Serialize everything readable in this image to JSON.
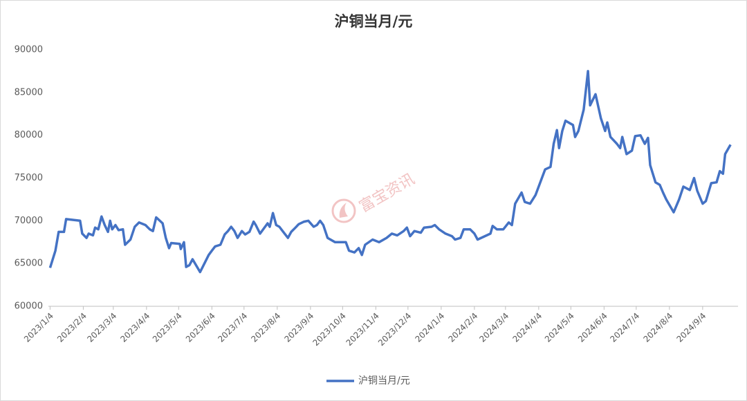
{
  "chart_data": {
    "type": "line",
    "title": "沪铜当月/元",
    "watermark": "富宝资讯",
    "x": [
      "2023/1/4",
      "2023/1/9",
      "2023/1/12",
      "2023/1/17",
      "2023/1/19",
      "2023/2/1",
      "2023/2/3",
      "2023/2/7",
      "2023/2/9",
      "2023/2/13",
      "2023/2/15",
      "2023/2/18",
      "2023/2/21",
      "2023/2/24",
      "2023/2/27",
      "2023/3/1",
      "2023/3/3",
      "2023/3/6",
      "2023/3/9",
      "2023/3/13",
      "2023/3/15",
      "2023/3/20",
      "2023/3/24",
      "2023/3/28",
      "2023/4/3",
      "2023/4/7",
      "2023/4/10",
      "2023/4/13",
      "2023/4/19",
      "2023/4/22",
      "2023/4/25",
      "2023/4/27",
      "2023/5/5",
      "2023/5/6",
      "2023/5/9",
      "2023/5/11",
      "2023/5/14",
      "2023/5/17",
      "2023/5/24",
      "2023/5/28",
      "2023/6/1",
      "2023/6/4",
      "2023/6/7",
      "2023/6/12",
      "2023/6/16",
      "2023/6/19",
      "2023/6/22",
      "2023/6/25",
      "2023/6/28",
      "2023/7/2",
      "2023/7/5",
      "2023/7/9",
      "2023/7/13",
      "2023/7/15",
      "2023/7/19",
      "2023/7/26",
      "2023/7/28",
      "2023/7/31",
      "2023/8/3",
      "2023/8/6",
      "2023/8/9",
      "2023/8/14",
      "2023/8/17",
      "2023/8/21",
      "2023/8/24",
      "2023/8/29",
      "2023/9/2",
      "2023/9/7",
      "2023/9/10",
      "2023/9/13",
      "2023/9/16",
      "2023/9/20",
      "2023/9/27",
      "2023/10/7",
      "2023/10/10",
      "2023/10/15",
      "2023/10/19",
      "2023/10/22",
      "2023/10/25",
      "2023/11/1",
      "2023/11/7",
      "2023/11/14",
      "2023/11/19",
      "2023/11/24",
      "2023/11/30",
      "2023/12/3",
      "2023/12/6",
      "2023/12/10",
      "2023/12/16",
      "2023/12/19",
      "2023/12/26",
      "2023/12/29",
      "2024/1/2",
      "2024/1/8",
      "2024/1/14",
      "2024/1/17",
      "2024/1/22",
      "2024/1/25",
      "2024/1/31",
      "2024/2/4",
      "2024/2/7",
      "2024/2/19",
      "2024/2/21",
      "2024/2/25",
      "2024/3/2",
      "2024/3/7",
      "2024/3/10",
      "2024/3/13",
      "2024/3/19",
      "2024/3/22",
      "2024/3/27",
      "2024/4/1",
      "2024/4/10",
      "2024/4/15",
      "2024/4/18",
      "2024/4/21",
      "2024/4/23",
      "2024/4/26",
      "2024/4/29",
      "2024/5/6",
      "2024/5/8",
      "2024/5/11",
      "2024/5/16",
      "2024/5/20",
      "2024/5/22",
      "2024/5/27",
      "2024/6/1",
      "2024/6/5",
      "2024/6/7",
      "2024/6/10",
      "2024/6/16",
      "2024/6/19",
      "2024/6/21",
      "2024/6/25",
      "2024/6/30",
      "2024/7/3",
      "2024/7/8",
      "2024/7/12",
      "2024/7/15",
      "2024/7/17",
      "2024/7/22",
      "2024/7/26",
      "2024/7/29",
      "2024/8/1",
      "2024/8/8",
      "2024/8/13",
      "2024/8/17",
      "2024/8/23",
      "2024/8/27",
      "2024/8/30",
      "2024/9/4",
      "2024/9/7",
      "2024/9/12",
      "2024/9/17",
      "2024/9/20",
      "2024/9/23",
      "2024/9/25",
      "2024/9/30"
    ],
    "series": [
      {
        "name": "沪铜当月/元",
        "color": "#4472c4",
        "values": [
          64500,
          66500,
          68700,
          68700,
          70200,
          70000,
          68500,
          68000,
          68500,
          68300,
          69200,
          69000,
          70500,
          69500,
          68700,
          70000,
          69000,
          69500,
          68900,
          69000,
          67200,
          67800,
          69300,
          69800,
          69500,
          69000,
          68800,
          70400,
          69700,
          68000,
          66800,
          67400,
          67300,
          66700,
          67500,
          64600,
          64800,
          65500,
          64000,
          65000,
          66000,
          66500,
          67000,
          67200,
          68400,
          68800,
          69300,
          68800,
          68000,
          68800,
          68400,
          68700,
          69900,
          69500,
          68500,
          69700,
          69300,
          70900,
          69500,
          69300,
          68800,
          68000,
          68700,
          69200,
          69600,
          69900,
          70000,
          69300,
          69500,
          70000,
          69500,
          68000,
          67500,
          67500,
          66500,
          66300,
          66800,
          66000,
          67200,
          67800,
          67500,
          68000,
          68500,
          68300,
          68800,
          69200,
          68200,
          68800,
          68600,
          69200,
          69300,
          69500,
          69000,
          68500,
          68200,
          67800,
          68000,
          69000,
          69000,
          68500,
          67800,
          68500,
          69400,
          69000,
          69000,
          69800,
          69500,
          72000,
          73300,
          72200,
          72000,
          73000,
          76000,
          76300,
          79000,
          80600,
          78500,
          80500,
          81700,
          81200,
          79800,
          80500,
          83000,
          87500,
          83500,
          84800,
          82000,
          80500,
          81500,
          79800,
          79000,
          78500,
          79800,
          77800,
          78200,
          79900,
          80000,
          79000,
          79700,
          76500,
          74500,
          74200,
          73300,
          72500,
          71000,
          72500,
          74000,
          73600,
          75000,
          73500,
          72000,
          72300,
          74400,
          74500,
          75800,
          75500,
          77800,
          78900
        ]
      }
    ],
    "xlim": [
      "2022/12/27",
      "2024/10/7"
    ],
    "xticks": [
      "2023/1/4",
      "2023/2/4",
      "2023/3/4",
      "2023/4/4",
      "2023/5/4",
      "2023/6/4",
      "2023/7/4",
      "2023/8/4",
      "2023/9/4",
      "2023/10/4",
      "2023/11/4",
      "2023/12/4",
      "2024/1/4",
      "2024/2/4",
      "2024/3/4",
      "2024/4/4",
      "2024/5/4",
      "2024/6/4",
      "2024/7/4",
      "2024/8/4",
      "2024/9/4"
    ],
    "ylim": [
      60000,
      90000
    ],
    "yticks": [
      60000,
      65000,
      70000,
      75000,
      80000,
      85000,
      90000
    ],
    "grid": false,
    "legend": "bottom"
  }
}
